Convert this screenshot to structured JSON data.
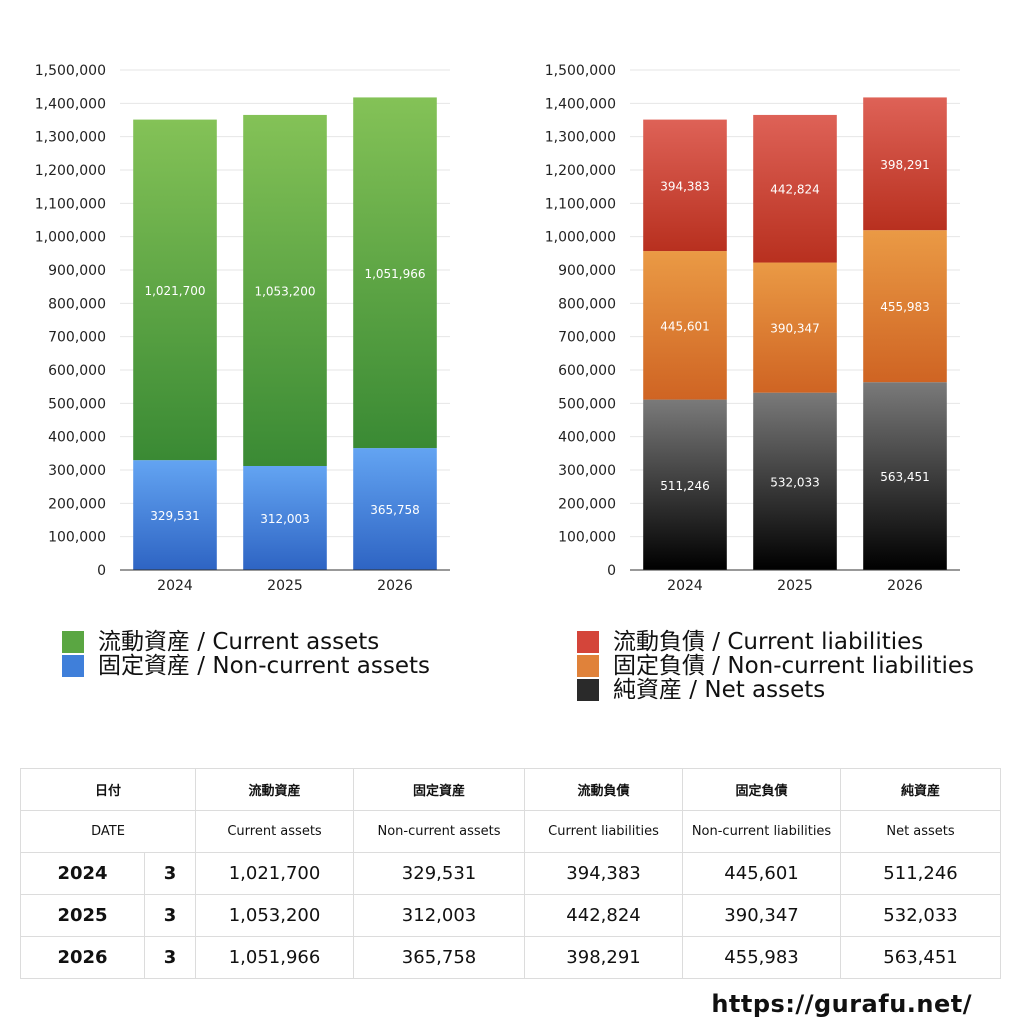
{
  "chart_data": [
    {
      "type": "bar",
      "stacked": true,
      "categories": [
        "2024",
        "2025",
        "2026"
      ],
      "ylim": [
        0,
        1500000
      ],
      "yticks": [
        0,
        100000,
        200000,
        300000,
        400000,
        500000,
        600000,
        700000,
        800000,
        900000,
        1000000,
        1100000,
        1200000,
        1300000,
        1400000,
        1500000
      ],
      "ytick_labels": [
        "0",
        "100,000",
        "200,000",
        "300,000",
        "400,000",
        "500,000",
        "600,000",
        "700,000",
        "800,000",
        "900,000",
        "1,000,000",
        "1,100,000",
        "1,200,000",
        "1,300,000",
        "1,400,000",
        "1,500,000"
      ],
      "grid": true,
      "series": [
        {
          "name": "固定資産 / Non-current assets",
          "values": [
            329531,
            312003,
            365758
          ],
          "labels": [
            "329,531",
            "312,003",
            "365,758"
          ],
          "color_top": "#63a4f2",
          "color_bottom": "#2e64c3"
        },
        {
          "name": "流動資産 / Current assets",
          "values": [
            1021700,
            1053200,
            1051966
          ],
          "labels": [
            "1,021,700",
            "1,053,200",
            "1,051,966"
          ],
          "color_top": "#84c257",
          "color_bottom": "#3a8a34"
        }
      ]
    },
    {
      "type": "bar",
      "stacked": true,
      "categories": [
        "2024",
        "2025",
        "2026"
      ],
      "ylim": [
        0,
        1500000
      ],
      "yticks": [
        0,
        100000,
        200000,
        300000,
        400000,
        500000,
        600000,
        700000,
        800000,
        900000,
        1000000,
        1100000,
        1200000,
        1300000,
        1400000,
        1500000
      ],
      "ytick_labels": [
        "0",
        "100,000",
        "200,000",
        "300,000",
        "400,000",
        "500,000",
        "600,000",
        "700,000",
        "800,000",
        "900,000",
        "1,000,000",
        "1,100,000",
        "1,200,000",
        "1,300,000",
        "1,400,000",
        "1,500,000"
      ],
      "grid": true,
      "series": [
        {
          "name": "純資産 / Net assets",
          "values": [
            511246,
            532033,
            563451
          ],
          "labels": [
            "511,246",
            "532,033",
            "563,451"
          ],
          "color_top": "#7a7a7a",
          "color_bottom": "#000000"
        },
        {
          "name": "固定負債 / Non-current liabilities",
          "values": [
            445601,
            390347,
            455983
          ],
          "labels": [
            "445,601",
            "390,347",
            "455,983"
          ],
          "color_top": "#ea9a45",
          "color_bottom": "#cf6423"
        },
        {
          "name": "流動負債 / Current liabilities",
          "values": [
            394383,
            442824,
            398291
          ],
          "labels": [
            "394,383",
            "442,824",
            "398,291"
          ],
          "color_top": "#de6257",
          "color_bottom": "#b8301f"
        }
      ]
    }
  ],
  "legend_left": [
    {
      "label": "流動資産 / Current assets",
      "color": "#5aa642"
    },
    {
      "label": "固定資産 / Non-current assets",
      "color": "#3f7fda"
    }
  ],
  "legend_right": [
    {
      "label": "流動負債 / Current liabilities",
      "color": "#d4453a"
    },
    {
      "label": "固定負債 / Non-current liabilities",
      "color": "#e0823a"
    },
    {
      "label": "純資産 / Net assets",
      "color": "#2a2a2a"
    }
  ],
  "table": {
    "header_jp": [
      "日付",
      "流動資産",
      "固定資産",
      "流動負債",
      "固定負債",
      "純資産"
    ],
    "header_en": [
      "DATE",
      "Current assets",
      "Non-current assets",
      "Current liabilities",
      "Non-current liabilities",
      "Net assets"
    ],
    "rows": [
      {
        "year": "2024",
        "count": "3",
        "values": [
          "1,021,700",
          "329,531",
          "394,383",
          "445,601",
          "511,246"
        ]
      },
      {
        "year": "2025",
        "count": "3",
        "values": [
          "1,053,200",
          "312,003",
          "442,824",
          "390,347",
          "532,033"
        ]
      },
      {
        "year": "2026",
        "count": "3",
        "values": [
          "1,051,966",
          "365,758",
          "398,291",
          "455,983",
          "563,451"
        ]
      }
    ]
  },
  "footer": {
    "url": "https://gurafu.net/"
  }
}
